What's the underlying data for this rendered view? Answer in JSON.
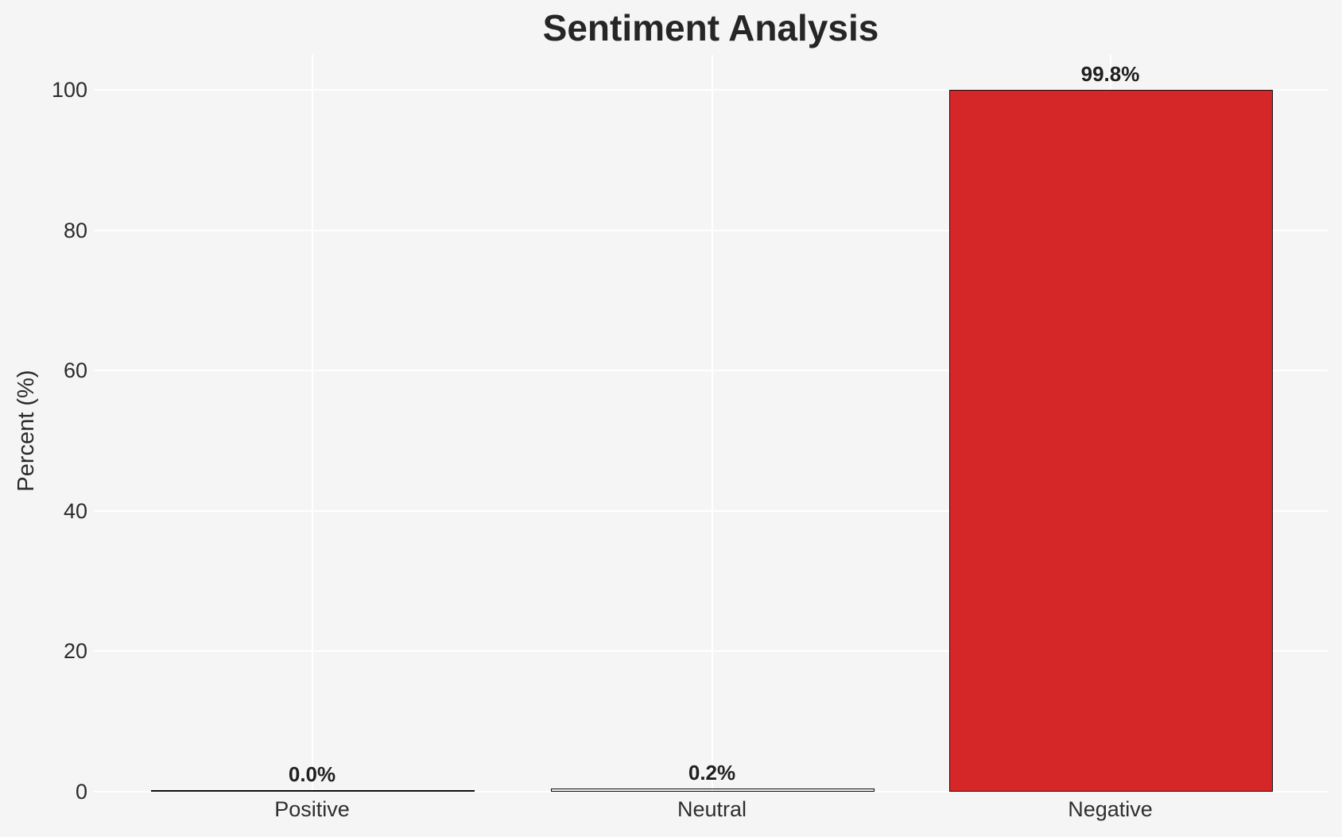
{
  "chart_data": {
    "type": "bar",
    "title": "Sentiment Analysis",
    "xlabel": "",
    "ylabel": "Percent (%)",
    "categories": [
      "Positive",
      "Neutral",
      "Negative"
    ],
    "values": [
      0.0,
      0.2,
      99.8
    ],
    "value_labels": [
      "0.0%",
      "0.2%",
      "99.8%"
    ],
    "yticks": [
      0,
      20,
      40,
      60,
      80,
      100
    ],
    "ylim": [
      0,
      105
    ],
    "grid": true,
    "legend": "none",
    "colors": {
      "background": "#f5f5f5",
      "gridline": "#ffffff",
      "bar_fills": [
        null,
        null,
        "#d62728"
      ],
      "bar_edge": "#0d0d0d",
      "title_text": "#262626",
      "tick_text": "#2b2b2b",
      "value_label_text": "#1f1f1f"
    }
  }
}
